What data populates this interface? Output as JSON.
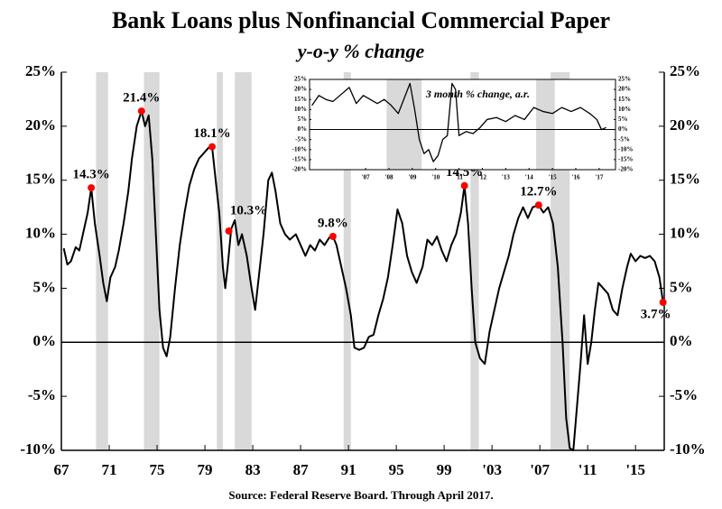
{
  "chart_data": [
    {
      "type": "line",
      "title": "Bank Loans plus Nonfinancial Commercial Paper",
      "subtitle": "y-o-y % change",
      "source": "Source: Federal Reserve Board. Through April 2017.",
      "x": [
        1967.2,
        1967.5,
        1967.8,
        1968.2,
        1968.5,
        1968.8,
        1969.2,
        1969.5,
        1969.8,
        1970.2,
        1970.5,
        1970.8,
        1971.1,
        1971.5,
        1971.8,
        1972.2,
        1972.6,
        1972.9,
        1973.3,
        1973.7,
        1974.0,
        1974.3,
        1974.6,
        1974.9,
        1975.2,
        1975.5,
        1975.8,
        1976.1,
        1976.5,
        1976.9,
        1977.3,
        1977.7,
        1978.1,
        1978.5,
        1978.9,
        1979.3,
        1979.6,
        1979.9,
        1980.2,
        1980.5,
        1980.7,
        1980.9,
        1981.2,
        1981.5,
        1981.8,
        1982.1,
        1982.5,
        1982.9,
        1983.2,
        1983.5,
        1983.9,
        1984.3,
        1984.6,
        1984.9,
        1985.3,
        1985.7,
        1986.1,
        1986.6,
        1987.0,
        1987.4,
        1987.8,
        1988.2,
        1988.6,
        1989.0,
        1989.4,
        1989.7,
        1990.0,
        1990.4,
        1990.8,
        1991.2,
        1991.5,
        1991.9,
        1992.3,
        1992.7,
        1993.1,
        1993.5,
        1993.9,
        1994.3,
        1994.7,
        1995.1,
        1995.5,
        1995.9,
        1996.3,
        1996.7,
        1997.2,
        1997.6,
        1998.0,
        1998.4,
        1998.8,
        1999.2,
        1999.6,
        2000.0,
        2000.4,
        2000.7,
        2001.0,
        2001.3,
        2001.6,
        2002.0,
        2002.4,
        2002.8,
        2003.2,
        2003.6,
        2004.0,
        2004.4,
        2004.8,
        2005.2,
        2005.6,
        2006.0,
        2006.4,
        2006.9,
        2007.3,
        2007.7,
        2008.1,
        2008.5,
        2008.9,
        2009.2,
        2009.5,
        2009.8,
        2010.1,
        2010.4,
        2010.7,
        2011.0,
        2011.3,
        2011.6,
        2011.9,
        2012.3,
        2012.7,
        2013.1,
        2013.5,
        2013.9,
        2014.3,
        2014.6,
        2015.0,
        2015.4,
        2015.8,
        2016.2,
        2016.6,
        2017.0,
        2017.3
      ],
      "series": [
        {
          "color": "#000000",
          "values": [
            8.7,
            7.2,
            7.5,
            8.8,
            8.5,
            10,
            12,
            14.3,
            11,
            8,
            5.5,
            3.8,
            6,
            7,
            8.5,
            11,
            14,
            17,
            20,
            21.4,
            20,
            21,
            17,
            10,
            3,
            -0.5,
            -1.3,
            0.5,
            5,
            9,
            12,
            14.5,
            16,
            17,
            17.5,
            18,
            18.1,
            15,
            12,
            7,
            5,
            7,
            10.5,
            11.3,
            9,
            10,
            8,
            5,
            3,
            6,
            10,
            15,
            15.7,
            14,
            11,
            10,
            9.5,
            10,
            9,
            8,
            9,
            8.5,
            9.5,
            9,
            9.7,
            9.8,
            9,
            7,
            5,
            2.5,
            -0.5,
            -0.7,
            -0.5,
            0.5,
            0.7,
            2.5,
            4,
            6,
            9,
            12.3,
            11,
            8,
            6.5,
            5.5,
            7,
            9.5,
            9,
            9.8,
            8.5,
            7.5,
            9,
            10,
            12,
            14.5,
            11,
            5,
            0,
            -1.5,
            -2,
            1,
            3,
            5,
            6.5,
            8,
            10,
            11.5,
            12.5,
            11.5,
            12.5,
            12.7,
            12,
            12.5,
            11,
            7,
            0,
            -7,
            -9.8,
            -10,
            -6,
            -2,
            2.5,
            -2,
            0,
            3,
            5.5,
            5,
            4.5,
            3,
            2.5,
            5,
            7,
            8.2,
            7.5,
            8,
            7.8,
            8,
            7.5,
            6,
            3.7
          ]
        }
      ],
      "shaded_ranges": [
        [
          1969.9,
          1970.9
        ],
        [
          1973.9,
          1975.2
        ],
        [
          1980.0,
          1980.5
        ],
        [
          1981.5,
          1982.9
        ],
        [
          1990.6,
          1991.2
        ],
        [
          2001.2,
          2001.9
        ],
        [
          2007.9,
          2009.5
        ]
      ],
      "shade_color": "#d9d9d9",
      "annotations": [
        {
          "x": 1969.5,
          "y": 14.3,
          "label": "14.3%"
        },
        {
          "x": 1973.7,
          "y": 21.4,
          "label": "21.4%"
        },
        {
          "x": 1979.6,
          "y": 18.1,
          "label": "18.1%"
        },
        {
          "x": 1981.0,
          "y": 10.3,
          "label": "10.3%"
        },
        {
          "x": 1989.7,
          "y": 9.8,
          "label": "9.8%"
        },
        {
          "x": 2000.7,
          "y": 14.5,
          "label": "14.5%"
        },
        {
          "x": 2006.9,
          "y": 12.7,
          "label": "12.7%"
        },
        {
          "x": 2017.3,
          "y": 3.7,
          "label": "3.7%"
        }
      ],
      "annotation_color": "#ff0000",
      "xlim": [
        1967,
        2017.4
      ],
      "xticks": [
        {
          "value": 1967,
          "label": "67"
        },
        {
          "value": 1971,
          "label": "71"
        },
        {
          "value": 1975,
          "label": "75"
        },
        {
          "value": 1979,
          "label": "79"
        },
        {
          "value": 1983,
          "label": "83"
        },
        {
          "value": 1987,
          "label": "87"
        },
        {
          "value": 1991,
          "label": "91"
        },
        {
          "value": 1995,
          "label": "95"
        },
        {
          "value": 1999,
          "label": "99"
        },
        {
          "value": 2003,
          "label": "'03"
        },
        {
          "value": 2007,
          "label": "'07"
        },
        {
          "value": 2011,
          "label": "'11"
        },
        {
          "value": 2015,
          "label": "'15"
        }
      ],
      "ylim": [
        -10,
        25
      ],
      "yticks": [
        {
          "value": -10,
          "label": "-10%"
        },
        {
          "value": -5,
          "label": "-5%"
        },
        {
          "value": 0,
          "label": "0%"
        },
        {
          "value": 5,
          "label": "5%"
        },
        {
          "value": 10,
          "label": "10%"
        },
        {
          "value": 15,
          "label": "15%"
        },
        {
          "value": 20,
          "label": "20%"
        },
        {
          "value": 25,
          "label": "25%"
        }
      ],
      "y2lim": [
        -10,
        25
      ],
      "y2ticks": [
        {
          "value": -10,
          "label": "-10%"
        },
        {
          "value": -5,
          "label": "-5%"
        },
        {
          "value": 0,
          "label": "0%"
        },
        {
          "value": 5,
          "label": "5%"
        },
        {
          "value": 10,
          "label": "10%"
        },
        {
          "value": 15,
          "label": "15%"
        },
        {
          "value": 20,
          "label": "20%"
        },
        {
          "value": 25,
          "label": "25%"
        }
      ]
    },
    {
      "type": "line",
      "title": "3 month % change, a.r.",
      "x": [
        2004.7,
        2005.0,
        2005.3,
        2005.6,
        2006.0,
        2006.3,
        2006.6,
        2006.9,
        2007.2,
        2007.5,
        2007.8,
        2008.1,
        2008.4,
        2008.7,
        2008.9,
        2009.1,
        2009.3,
        2009.5,
        2009.7,
        2009.9,
        2010.1,
        2010.3,
        2010.5,
        2010.7,
        2010.85,
        2011.0,
        2011.3,
        2011.6,
        2011.9,
        2012.2,
        2012.6,
        2013.0,
        2013.4,
        2013.8,
        2014.2,
        2014.6,
        2015.0,
        2015.4,
        2015.8,
        2016.2,
        2016.6,
        2016.9,
        2017.1,
        2017.3
      ],
      "series": [
        {
          "color": "#000000",
          "values": [
            12,
            17,
            15,
            14,
            18,
            21,
            13,
            17,
            15,
            13,
            15,
            12,
            8,
            17,
            23,
            10,
            -5,
            -12,
            -10,
            -16,
            -13,
            -5,
            -3,
            23,
            20,
            -3,
            -1,
            -2,
            1,
            5,
            6,
            4,
            7,
            5,
            11,
            9,
            8,
            11,
            9,
            11,
            8,
            5,
            0,
            1
          ]
        }
      ],
      "shaded_ranges": [
        [
          2007.9,
          2009.4
        ],
        [
          2014.3,
          2015.1
        ]
      ],
      "shade_color": "#d9d9d9",
      "xlim": [
        2004.6,
        2017.7
      ],
      "xticks": [
        {
          "value": 2007,
          "label": "'07"
        },
        {
          "value": 2008,
          "label": "'08"
        },
        {
          "value": 2009,
          "label": "'09"
        },
        {
          "value": 2010,
          "label": "'10"
        },
        {
          "value": 2011,
          "label": "'11"
        },
        {
          "value": 2012,
          "label": "'12"
        },
        {
          "value": 2013,
          "label": "'13"
        },
        {
          "value": 2014,
          "label": "'14"
        },
        {
          "value": 2015,
          "label": "'15"
        },
        {
          "value": 2016,
          "label": "'16"
        },
        {
          "value": 2017,
          "label": "'17"
        }
      ],
      "ylim": [
        -20,
        25
      ],
      "yticks": [
        {
          "value": -20,
          "label": "-20%"
        },
        {
          "value": -15,
          "label": "-15%"
        },
        {
          "value": -10,
          "label": "-10%"
        },
        {
          "value": -5,
          "label": "-5%"
        },
        {
          "value": 0,
          "label": "0%"
        },
        {
          "value": 5,
          "label": "5%"
        },
        {
          "value": 10,
          "label": "10%"
        },
        {
          "value": 15,
          "label": "15%"
        },
        {
          "value": 20,
          "label": "20%"
        },
        {
          "value": 25,
          "label": "25%"
        }
      ],
      "y2lim": [
        -20,
        25
      ],
      "y2ticks": [
        {
          "value": -20,
          "label": "-20%"
        },
        {
          "value": -15,
          "label": "-15%"
        },
        {
          "value": -10,
          "label": "-10%"
        },
        {
          "value": -5,
          "label": "-5%"
        },
        {
          "value": 0,
          "label": "0%"
        },
        {
          "value": 5,
          "label": "5%"
        },
        {
          "value": 10,
          "label": "10%"
        },
        {
          "value": 15,
          "label": "15%"
        },
        {
          "value": 20,
          "label": "20%"
        },
        {
          "value": 25,
          "label": "25%"
        }
      ]
    }
  ]
}
